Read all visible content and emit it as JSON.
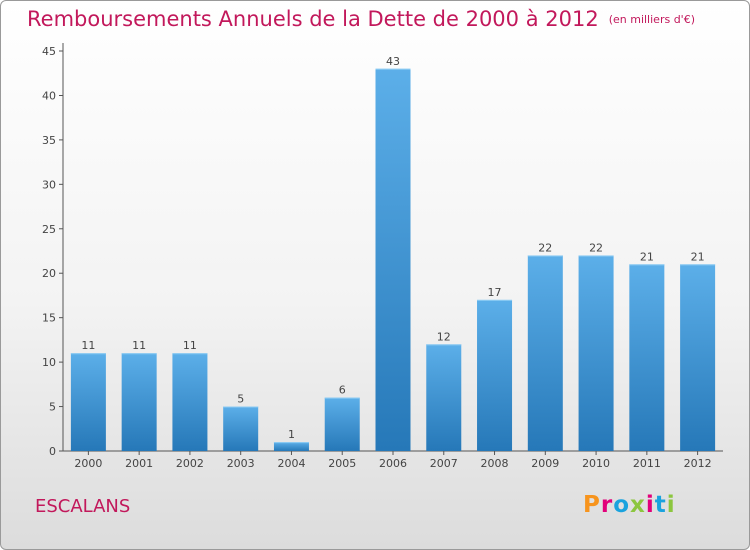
{
  "header": {
    "title": "Remboursements Annuels de la Dette de 2000 à 2012",
    "unit": "(en milliers d'€)"
  },
  "footer": {
    "commune": "ESCALANS",
    "logo_text": "Proxiti",
    "logo_colors": [
      "#f7941d",
      "#e2007a",
      "#1aa3de",
      "#8cc63f",
      "#e2007a",
      "#1aa3de",
      "#8cc63f"
    ]
  },
  "chart_data": {
    "type": "bar",
    "title": "Remboursements Annuels de la Dette de 2000 à 2012",
    "subtitle": "(en milliers d'€)",
    "xlabel": "",
    "ylabel": "",
    "categories": [
      "2000",
      "2001",
      "2002",
      "2003",
      "2004",
      "2005",
      "2006",
      "2007",
      "2008",
      "2009",
      "2010",
      "2011",
      "2012"
    ],
    "values": [
      11,
      11,
      11,
      5,
      1,
      6,
      43,
      12,
      17,
      22,
      22,
      21,
      21
    ],
    "ylim": [
      0,
      45
    ],
    "yticks": [
      0,
      5,
      10,
      15,
      20,
      25,
      30,
      35,
      40,
      45
    ],
    "bar_color": "#3d95dc",
    "grid": false,
    "legend": "none"
  }
}
